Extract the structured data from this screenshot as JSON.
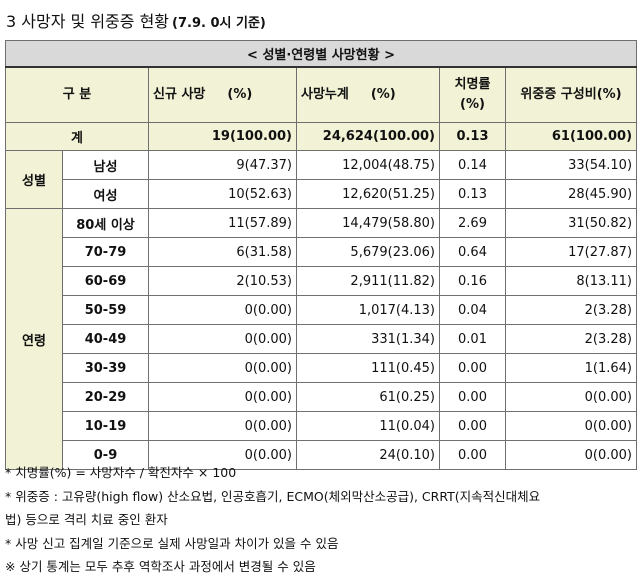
{
  "heading": {
    "title": "3  사망자 및 위중증 현황",
    "as_of": "(7.9. 0시 기준)"
  },
  "table": {
    "banner": "< 성별·연령별 사망현황 >",
    "headers": {
      "division": "구 분",
      "new_deaths": "신규 사망",
      "new_deaths_unit": "(%)",
      "cumulative": "사망누계",
      "cumulative_unit": "(%)",
      "fatality_line1": "치명률",
      "fatality_line2": "(%)",
      "critical": "위중증  구성비(%)"
    },
    "total": {
      "label": "계",
      "new": "19(100.00)",
      "cum": "24,624(100.00)",
      "rate": "0.13",
      "crit": "61(100.00)"
    },
    "sex_group": "성별",
    "sex_rows": [
      {
        "label": "남성",
        "new": "9(47.37)",
        "cum": "12,004(48.75)",
        "rate": "0.14",
        "crit": "33(54.10)"
      },
      {
        "label": "여성",
        "new": "10(52.63)",
        "cum": "12,620(51.25)",
        "rate": "0.13",
        "crit": "28(45.90)"
      }
    ],
    "age_group": "연령",
    "age_rows": [
      {
        "label": "80세 이상",
        "new": "11(57.89)",
        "cum": "14,479(58.80)",
        "rate": "2.69",
        "crit": "31(50.82)"
      },
      {
        "label": "70-79",
        "new": "6(31.58)",
        "cum": "5,679(23.06)",
        "rate": "0.64",
        "crit": "17(27.87)"
      },
      {
        "label": "60-69",
        "new": "2(10.53)",
        "cum": "2,911(11.82)",
        "rate": "0.16",
        "crit": "8(13.11)"
      },
      {
        "label": "50-59",
        "new": "0(0.00)",
        "cum": "1,017(4.13)",
        "rate": "0.04",
        "crit": "2(3.28)"
      },
      {
        "label": "40-49",
        "new": "0(0.00)",
        "cum": "331(1.34)",
        "rate": "0.01",
        "crit": "2(3.28)"
      },
      {
        "label": "30-39",
        "new": "0(0.00)",
        "cum": "111(0.45)",
        "rate": "0.00",
        "crit": "1(1.64)"
      },
      {
        "label": "20-29",
        "new": "0(0.00)",
        "cum": "61(0.25)",
        "rate": "0.00",
        "crit": "0(0.00)"
      },
      {
        "label": "10-19",
        "new": "0(0.00)",
        "cum": "11(0.04)",
        "rate": "0.00",
        "crit": "0(0.00)"
      },
      {
        "label": "0-9",
        "new": "0(0.00)",
        "cum": "24(0.10)",
        "rate": "0.00",
        "crit": "0(0.00)"
      }
    ]
  },
  "notes": [
    "* 치명률(%) = 사망자수 / 확진자수 × 100",
    "* 위중증 : 고유량(high flow) 산소요법, 인공호흡기, ECMO(체외막산소공급), CRRT(지속적신대체요",
    "법) 등으로 격리 치료 중인 환자",
    "* 사망 신고 집계일 기준으로 실제 사망일과 차이가 있을 수 있음",
    "※ 상기 통계는 모두 추후 역학조사 과정에서 변경될 수 있음"
  ]
}
